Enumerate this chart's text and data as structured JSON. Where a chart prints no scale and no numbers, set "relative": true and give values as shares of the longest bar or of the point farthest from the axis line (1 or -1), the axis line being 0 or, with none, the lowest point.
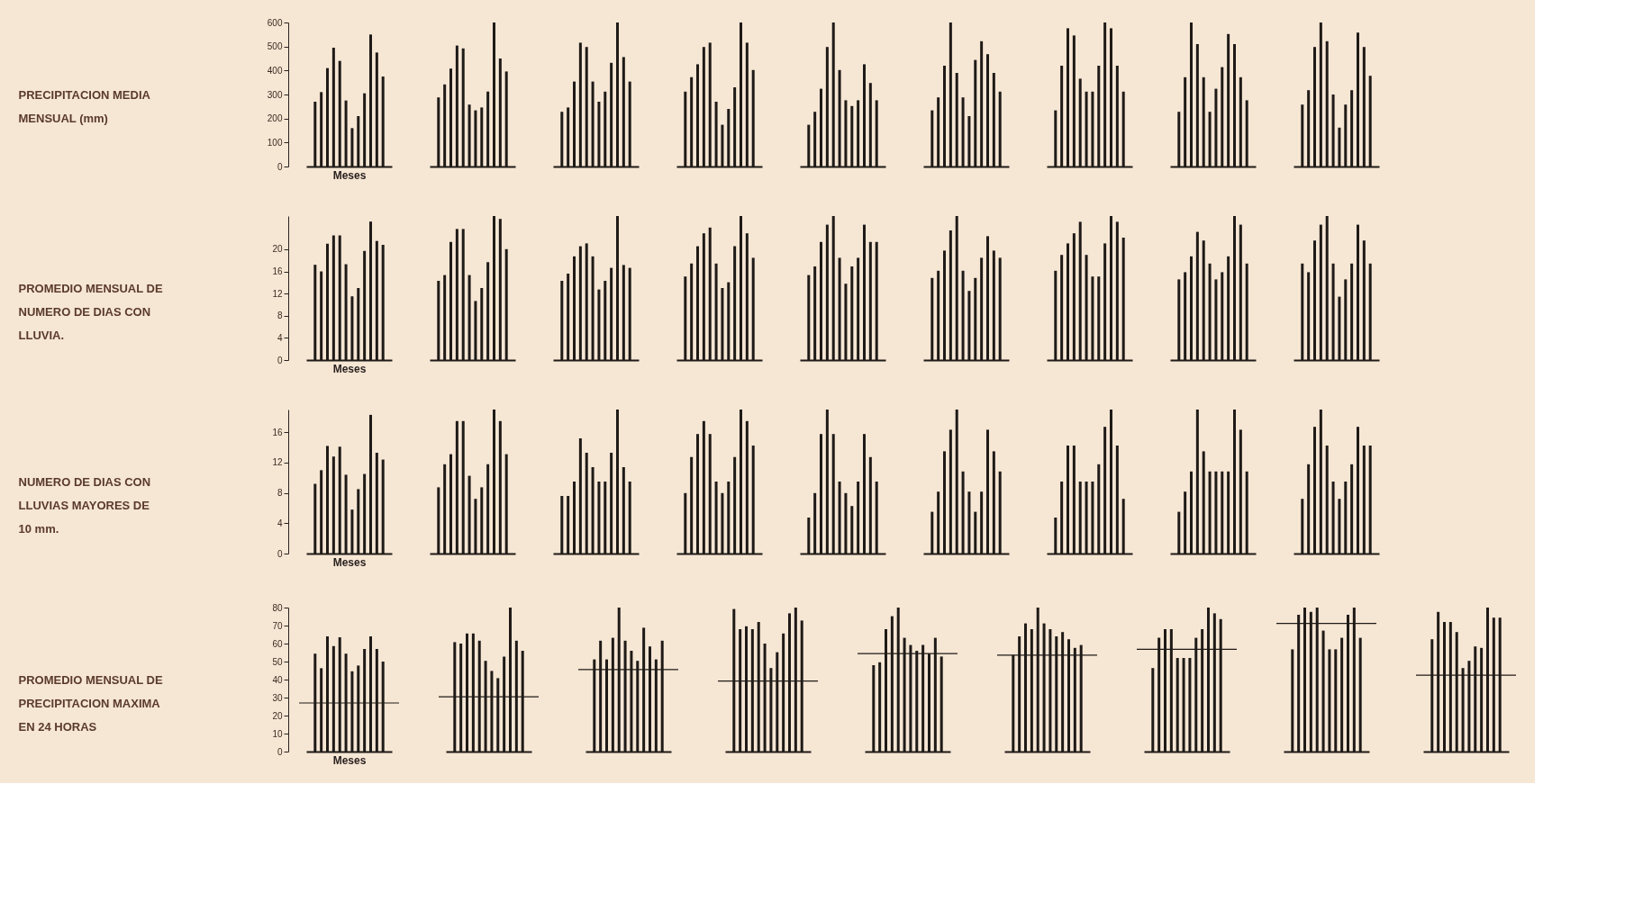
{
  "chart_data": [
    {
      "type": "bar",
      "ylabel": "PRECIPITACION MEDIA\nMENSUAL (mm)",
      "xlabel": "Meses",
      "categories": [
        null,
        null,
        null,
        null,
        null,
        null,
        null,
        null,
        null,
        null,
        null,
        null
      ],
      "values": [
        270,
        310,
        410,
        495,
        440,
        275,
        160,
        210,
        305,
        550,
        475,
        375
      ],
      "color": "#1e1a17",
      "ylim": [
        0,
        600
      ],
      "yticks": [
        0,
        100,
        200,
        300,
        400,
        500,
        600
      ],
      "tick_labels": "y"
    },
    {
      "type": "bar",
      "relative": true,
      "categories": [
        null,
        null,
        null,
        null,
        null,
        null,
        null,
        null,
        null,
        null,
        null,
        null
      ],
      "values": [
        0.48,
        0.57,
        0.68,
        0.84,
        0.82,
        0.43,
        0.39,
        0.41,
        0.52,
        1,
        0.75,
        0.66
      ],
      "color": "#1e1a17"
    },
    {
      "type": "bar",
      "relative": true,
      "categories": [
        null,
        null,
        null,
        null,
        null,
        null,
        null,
        null,
        null,
        null,
        null,
        null
      ],
      "values": [
        0.38,
        0.41,
        0.59,
        0.86,
        0.83,
        0.59,
        0.45,
        0.52,
        0.72,
        1,
        0.76,
        0.59
      ],
      "color": "#1e1a17"
    },
    {
      "type": "bar",
      "relative": true,
      "categories": [
        null,
        null,
        null,
        null,
        null,
        null,
        null,
        null,
        null,
        null,
        null,
        null
      ],
      "values": [
        0.52,
        0.62,
        0.71,
        0.83,
        0.86,
        0.45,
        0.29,
        0.4,
        0.55,
        1,
        0.86,
        0.67
      ],
      "color": "#1e1a17"
    },
    {
      "type": "bar",
      "relative": true,
      "categories": [
        null,
        null,
        null,
        null,
        null,
        null,
        null,
        null,
        null,
        null,
        null,
        null
      ],
      "values": [
        0.29,
        0.38,
        0.54,
        0.83,
        1,
        0.67,
        0.46,
        0.42,
        0.46,
        0.71,
        0.58,
        0.46
      ],
      "color": "#1e1a17"
    },
    {
      "type": "bar",
      "relative": true,
      "categories": [
        null,
        null,
        null,
        null,
        null,
        null,
        null,
        null,
        null,
        null,
        null,
        null
      ],
      "values": [
        0.39,
        0.48,
        0.7,
        1,
        0.65,
        0.48,
        0.35,
        0.74,
        0.87,
        0.78,
        0.65,
        0.52
      ],
      "color": "#1e1a17"
    },
    {
      "type": "bar",
      "relative": true,
      "categories": [
        null,
        null,
        null,
        null,
        null,
        null,
        null,
        null,
        null,
        null,
        null,
        null
      ],
      "values": [
        0.39,
        0.7,
        0.96,
        0.91,
        0.61,
        0.52,
        0.52,
        0.7,
        1,
        0.96,
        0.7,
        0.52
      ],
      "color": "#1e1a17"
    },
    {
      "type": "bar",
      "relative": true,
      "categories": [
        null,
        null,
        null,
        null,
        null,
        null,
        null,
        null,
        null,
        null,
        null,
        null
      ],
      "values": [
        0.38,
        0.62,
        1,
        0.85,
        0.62,
        0.38,
        0.54,
        0.69,
        0.92,
        0.85,
        0.62,
        0.46
      ],
      "color": "#1e1a17"
    },
    {
      "type": "bar",
      "relative": true,
      "categories": [
        null,
        null,
        null,
        null,
        null,
        null,
        null,
        null,
        null,
        null,
        null,
        null
      ],
      "values": [
        0.43,
        0.53,
        0.83,
        1,
        0.87,
        0.5,
        0.27,
        0.43,
        0.53,
        0.93,
        0.83,
        0.63
      ],
      "color": "#1e1a17"
    },
    {
      "type": "bar",
      "ylabel": "PROMEDIO MENSUAL DE\nNUMERO DE DIAS CON\nLLUVIA.",
      "xlabel": "Meses",
      "categories": [
        null,
        null,
        null,
        null,
        null,
        null,
        null,
        null,
        null,
        null,
        null,
        null
      ],
      "values": [
        17.2,
        16,
        21,
        22.5,
        22.5,
        17.3,
        11.5,
        13,
        19.7,
        25,
        21.5,
        20.8
      ],
      "color": "#1e1a17",
      "ylim": [
        0,
        26
      ],
      "yticks": [
        0,
        4,
        8,
        12,
        16,
        20
      ],
      "tick_labels": "y"
    },
    {
      "type": "bar",
      "relative": true,
      "categories": [
        null,
        null,
        null,
        null,
        null,
        null,
        null,
        null,
        null,
        null,
        null,
        null
      ],
      "values": [
        0.55,
        0.59,
        0.82,
        0.91,
        0.91,
        0.59,
        0.41,
        0.5,
        0.68,
        1,
        0.98,
        0.77
      ],
      "color": "#1e1a17"
    },
    {
      "type": "bar",
      "relative": true,
      "categories": [
        null,
        null,
        null,
        null,
        null,
        null,
        null,
        null,
        null,
        null,
        null,
        null
      ],
      "values": [
        0.55,
        0.6,
        0.72,
        0.79,
        0.81,
        0.72,
        0.49,
        0.55,
        0.64,
        1,
        0.66,
        0.64
      ],
      "color": "#1e1a17"
    },
    {
      "type": "bar",
      "relative": true,
      "categories": [
        null,
        null,
        null,
        null,
        null,
        null,
        null,
        null,
        null,
        null,
        null,
        null
      ],
      "values": [
        0.58,
        0.67,
        0.79,
        0.88,
        0.92,
        0.67,
        0.5,
        0.54,
        0.79,
        1,
        0.88,
        0.71
      ],
      "color": "#1e1a17"
    },
    {
      "type": "bar",
      "relative": true,
      "categories": [
        null,
        null,
        null,
        null,
        null,
        null,
        null,
        null,
        null,
        null,
        null,
        null
      ],
      "values": [
        0.59,
        0.65,
        0.82,
        0.94,
        1,
        0.71,
        0.53,
        0.65,
        0.71,
        0.94,
        0.82,
        0.82
      ],
      "color": "#1e1a17"
    },
    {
      "type": "bar",
      "relative": true,
      "categories": [
        null,
        null,
        null,
        null,
        null,
        null,
        null,
        null,
        null,
        null,
        null,
        null
      ],
      "values": [
        0.57,
        0.62,
        0.76,
        0.9,
        1,
        0.62,
        0.48,
        0.57,
        0.71,
        0.86,
        0.76,
        0.71
      ],
      "color": "#1e1a17"
    },
    {
      "type": "bar",
      "relative": true,
      "categories": [
        null,
        null,
        null,
        null,
        null,
        null,
        null,
        null,
        null,
        null,
        null,
        null
      ],
      "values": [
        0.62,
        0.73,
        0.81,
        0.88,
        0.96,
        0.73,
        0.58,
        0.58,
        0.81,
        1,
        0.96,
        0.85
      ],
      "color": "#1e1a17"
    },
    {
      "type": "bar",
      "relative": true,
      "categories": [
        null,
        null,
        null,
        null,
        null,
        null,
        null,
        null,
        null,
        null,
        null,
        null
      ],
      "values": [
        0.56,
        0.61,
        0.72,
        0.89,
        0.83,
        0.67,
        0.56,
        0.61,
        0.72,
        1,
        0.94,
        0.67
      ],
      "color": "#1e1a17"
    },
    {
      "type": "bar",
      "relative": true,
      "categories": [
        null,
        null,
        null,
        null,
        null,
        null,
        null,
        null,
        null,
        null,
        null,
        null
      ],
      "values": [
        0.67,
        0.61,
        0.83,
        0.94,
        1,
        0.67,
        0.44,
        0.56,
        0.67,
        0.94,
        0.83,
        0.67
      ],
      "color": "#1e1a17"
    },
    {
      "type": "bar",
      "ylabel": "NUMERO DE DIAS CON\nLLUVIAS MAYORES DE\n10 mm.",
      "xlabel": "Meses",
      "categories": [
        null,
        null,
        null,
        null,
        null,
        null,
        null,
        null,
        null,
        null,
        null,
        null
      ],
      "values": [
        9.2,
        11,
        14.2,
        12.8,
        14.1,
        10.4,
        5.8,
        8.5,
        10.5,
        18.3,
        13.3,
        12.4
      ],
      "color": "#1e1a17",
      "ylim": [
        0,
        19
      ],
      "yticks": [
        0,
        4,
        8,
        12,
        16
      ],
      "tick_labels": "y"
    },
    {
      "type": "bar",
      "relative": true,
      "categories": [
        null,
        null,
        null,
        null,
        null,
        null,
        null,
        null,
        null,
        null,
        null,
        null
      ],
      "values": [
        0.46,
        0.62,
        0.69,
        0.92,
        0.92,
        0.54,
        0.38,
        0.46,
        0.62,
        1,
        0.92,
        0.69
      ],
      "color": "#1e1a17"
    },
    {
      "type": "bar",
      "relative": true,
      "categories": [
        null,
        null,
        null,
        null,
        null,
        null,
        null,
        null,
        null,
        null,
        null,
        null
      ],
      "values": [
        0.4,
        0.4,
        0.5,
        0.8,
        0.7,
        0.6,
        0.5,
        0.5,
        0.7,
        1,
        0.6,
        0.5
      ],
      "color": "#1e1a17"
    },
    {
      "type": "bar",
      "relative": true,
      "categories": [
        null,
        null,
        null,
        null,
        null,
        null,
        null,
        null,
        null,
        null,
        null,
        null
      ],
      "values": [
        0.42,
        0.67,
        0.83,
        0.92,
        0.83,
        0.5,
        0.42,
        0.5,
        0.67,
        1,
        0.92,
        0.75
      ],
      "color": "#1e1a17"
    },
    {
      "type": "bar",
      "relative": true,
      "categories": [
        null,
        null,
        null,
        null,
        null,
        null,
        null,
        null,
        null,
        null,
        null,
        null
      ],
      "values": [
        0.25,
        0.42,
        0.83,
        1,
        0.83,
        0.5,
        0.42,
        0.33,
        0.5,
        0.83,
        0.67,
        0.5
      ],
      "color": "#1e1a17"
    },
    {
      "type": "bar",
      "relative": true,
      "categories": [
        null,
        null,
        null,
        null,
        null,
        null,
        null,
        null,
        null,
        null,
        null,
        null
      ],
      "values": [
        0.29,
        0.43,
        0.71,
        0.86,
        1,
        0.57,
        0.43,
        0.29,
        0.43,
        0.86,
        0.71,
        0.57
      ],
      "color": "#1e1a17"
    },
    {
      "type": "bar",
      "relative": true,
      "categories": [
        null,
        null,
        null,
        null,
        null,
        null,
        null,
        null,
        null,
        null,
        null,
        null
      ],
      "values": [
        0.25,
        0.5,
        0.75,
        0.75,
        0.5,
        0.5,
        0.5,
        0.62,
        0.88,
        1,
        0.75,
        0.38
      ],
      "color": "#1e1a17"
    },
    {
      "type": "bar",
      "relative": true,
      "categories": [
        null,
        null,
        null,
        null,
        null,
        null,
        null,
        null,
        null,
        null,
        null,
        null
      ],
      "values": [
        0.29,
        0.43,
        0.57,
        1,
        0.71,
        0.57,
        0.57,
        0.57,
        0.57,
        1,
        0.86,
        0.57
      ],
      "color": "#1e1a17"
    },
    {
      "type": "bar",
      "relative": true,
      "categories": [
        null,
        null,
        null,
        null,
        null,
        null,
        null,
        null,
        null,
        null,
        null,
        null
      ],
      "values": [
        0.38,
        0.62,
        0.88,
        1,
        0.75,
        0.5,
        0.38,
        0.5,
        0.62,
        0.88,
        0.75,
        0.75
      ],
      "color": "#1e1a17"
    },
    {
      "type": "bar",
      "ylabel": "PROMEDIO MENSUAL DE\nPRECIPITACION MAXIMA\nEN 24 HORAS",
      "xlabel": "Meses",
      "categories": [
        null,
        null,
        null,
        null,
        null,
        null,
        null,
        null,
        null,
        null,
        null,
        null
      ],
      "values": [
        54.4,
        46.3,
        64,
        58.6,
        63.5,
        54.4,
        44.6,
        47.8,
        57,
        64,
        57,
        50
      ],
      "color": "#1e1a17",
      "ylim": [
        0,
        80
      ],
      "yticks": [
        0,
        10,
        20,
        30,
        40,
        50,
        60,
        70,
        80
      ],
      "tick_labels": "y",
      "ref_lines": [
        {
          "axis": "y",
          "value": 27,
          "color": "#1e1a17"
        }
      ]
    },
    {
      "type": "bar",
      "relative": true,
      "categories": [
        null,
        null,
        null,
        null,
        null,
        null,
        null,
        null,
        null,
        null,
        null,
        null
      ],
      "values": [
        0.76,
        0.75,
        0.82,
        0.82,
        0.77,
        0.63,
        0.56,
        0.51,
        0.66,
        1,
        0.77,
        0.7
      ],
      "color": "#1e1a17",
      "ref_lines": [
        {
          "axis": "y",
          "value": 0.38,
          "color": "#1e1a17"
        }
      ]
    },
    {
      "type": "bar",
      "relative": true,
      "categories": [
        null,
        null,
        null,
        null,
        null,
        null,
        null,
        null,
        null,
        null,
        null,
        null
      ],
      "values": [
        0.64,
        0.77,
        0.64,
        0.79,
        1,
        0.77,
        0.7,
        0.63,
        0.86,
        0.73,
        0.64,
        0.77
      ],
      "color": "#1e1a17",
      "ref_lines": [
        {
          "axis": "y",
          "value": 0.57,
          "color": "#1e1a17"
        }
      ]
    },
    {
      "type": "bar",
      "relative": true,
      "categories": [
        null,
        null,
        null,
        null,
        null,
        null,
        null,
        null,
        null,
        null,
        null,
        null
      ],
      "values": [
        0.99,
        0.85,
        0.87,
        0.85,
        0.9,
        0.75,
        0.58,
        0.69,
        0.82,
        0.96,
        1,
        0.91
      ],
      "color": "#1e1a17",
      "ref_lines": [
        {
          "axis": "y",
          "value": 0.49,
          "color": "#1e1a17"
        }
      ]
    },
    {
      "type": "bar",
      "relative": true,
      "categories": [
        null,
        null,
        null,
        null,
        null,
        null,
        null,
        null,
        null,
        null,
        null,
        null
      ],
      "values": [
        0.6,
        0.62,
        0.85,
        0.94,
        1,
        0.79,
        0.74,
        0.7,
        0.74,
        0.68,
        0.79,
        0.66
      ],
      "color": "#1e1a17",
      "ref_lines": [
        {
          "axis": "y",
          "value": 0.68,
          "color": "#1e1a17"
        }
      ]
    },
    {
      "type": "bar",
      "relative": true,
      "categories": [
        null,
        null,
        null,
        null,
        null,
        null,
        null,
        null,
        null,
        null,
        null,
        null
      ],
      "values": [
        0.67,
        0.8,
        0.89,
        0.85,
        1,
        0.89,
        0.85,
        0.8,
        0.83,
        0.78,
        0.72,
        0.74
      ],
      "color": "#1e1a17",
      "ref_lines": [
        {
          "axis": "y",
          "value": 0.67,
          "color": "#1e1a17"
        }
      ]
    },
    {
      "type": "bar",
      "relative": true,
      "categories": [
        null,
        null,
        null,
        null,
        null,
        null,
        null,
        null,
        null,
        null,
        null,
        null
      ],
      "values": [
        0.58,
        0.79,
        0.85,
        0.85,
        0.65,
        0.65,
        0.65,
        0.79,
        0.85,
        1,
        0.96,
        0.92
      ],
      "color": "#1e1a17",
      "ref_lines": [
        {
          "axis": "y",
          "value": 0.71,
          "color": "#1e1a17"
        }
      ]
    },
    {
      "type": "bar",
      "relative": true,
      "categories": [
        null,
        null,
        null,
        null,
        null,
        null,
        null,
        null,
        null,
        null,
        null,
        null
      ],
      "values": [
        0.71,
        0.95,
        1,
        0.97,
        1,
        0.84,
        0.71,
        0.71,
        0.79,
        0.95,
        1,
        0.79
      ],
      "color": "#1e1a17",
      "ref_lines": [
        {
          "axis": "y",
          "value": 0.89,
          "color": "#1e1a17"
        }
      ]
    },
    {
      "type": "bar",
      "relative": true,
      "categories": [
        null,
        null,
        null,
        null,
        null,
        null,
        null,
        null,
        null,
        null,
        null,
        null
      ],
      "values": [
        0.78,
        0.97,
        0.9,
        0.9,
        0.83,
        0.58,
        0.63,
        0.73,
        0.72,
        1,
        0.93,
        0.93
      ],
      "color": "#1e1a17",
      "ref_lines": [
        {
          "axis": "y",
          "value": 0.53,
          "color": "#1e1a17"
        }
      ]
    }
  ]
}
